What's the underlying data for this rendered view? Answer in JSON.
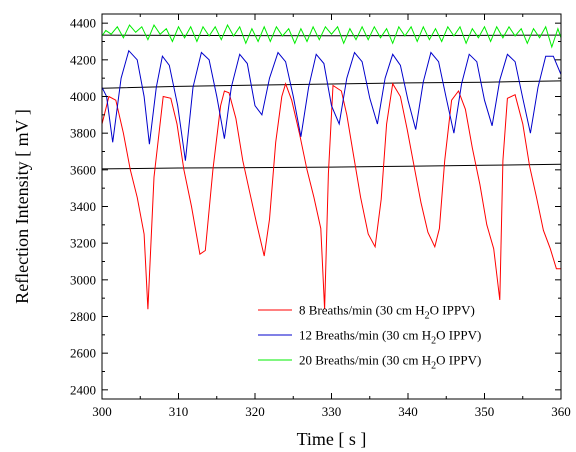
{
  "chart_data": {
    "type": "line",
    "title": "",
    "xlabel": "Time [ s ]",
    "ylabel": "Reflection Intensity [ mV ]",
    "xlim": [
      300,
      360
    ],
    "ylim": [
      2350,
      4450
    ],
    "x_ticks": [
      300,
      310,
      320,
      330,
      340,
      350,
      360
    ],
    "y_ticks": [
      2400,
      2600,
      2800,
      3000,
      3200,
      3400,
      3600,
      3800,
      4000,
      4200,
      4400
    ],
    "grid": false,
    "legend_position": "bottom-right",
    "series": [
      {
        "name": "8 Breaths/min (30 cm H2O IPPV)",
        "legend": {
          "pre": "8 Breaths/min (30 cm H",
          "sub": "2",
          "post": "O IPPV)"
        },
        "color": "#ff0000",
        "x": [
          300,
          300.9,
          301.8,
          302.8,
          303.7,
          304.6,
          305.5,
          306,
          306.8,
          308,
          309,
          309.8,
          310.7,
          311.7,
          312.8,
          313.5,
          314.5,
          315.5,
          316,
          316.6,
          317.5,
          318.4,
          319.3,
          320.2,
          321.2,
          321.9,
          322.7,
          323.5,
          324,
          324.8,
          325.8,
          326.8,
          327.7,
          328.6,
          329.1,
          329.6,
          330.2,
          331.3,
          332,
          332.8,
          333.8,
          334.8,
          335.7,
          336.5,
          337.2,
          338,
          339,
          339.9,
          340.8,
          341.7,
          342.6,
          343.5,
          344.1,
          344.8,
          345.7,
          346.6,
          347.5,
          348.4,
          349.4,
          350.3,
          351.2,
          352,
          352.4,
          353,
          354,
          355,
          355.9,
          356.8,
          357.7,
          358.6,
          359.4,
          360
        ],
        "values": [
          3850,
          4000,
          3980,
          3800,
          3600,
          3450,
          3250,
          2840,
          3560,
          4000,
          3990,
          3850,
          3600,
          3400,
          3140,
          3160,
          3600,
          3950,
          4030,
          4020,
          3880,
          3650,
          3480,
          3310,
          3130,
          3330,
          3750,
          4000,
          4070,
          3980,
          3800,
          3600,
          3450,
          3280,
          2840,
          3580,
          4060,
          4030,
          3900,
          3700,
          3450,
          3250,
          3180,
          3440,
          3850,
          4070,
          4000,
          3820,
          3620,
          3420,
          3260,
          3180,
          3280,
          3650,
          3980,
          4030,
          3930,
          3720,
          3520,
          3300,
          3170,
          2890,
          3650,
          3990,
          4010,
          3850,
          3620,
          3450,
          3270,
          3170,
          3060,
          3060
        ]
      },
      {
        "name": "12 Breaths/min (30 cm H2O IPPV)",
        "legend": {
          "pre": "12 Breaths/min (30 cm H",
          "sub": "2",
          "post": "O IPPV)"
        },
        "color": "#0000cc",
        "x": [
          300,
          300.6,
          301.4,
          302.5,
          303.5,
          304.6,
          305.5,
          306.2,
          307.1,
          307.9,
          308.8,
          309.9,
          310.9,
          311.9,
          313,
          314,
          315,
          316,
          316.9,
          318,
          319,
          320,
          320.9,
          321.9,
          323,
          324,
          325,
          326,
          327,
          328,
          329,
          330,
          331,
          332,
          333,
          334,
          335,
          336,
          337,
          338,
          339,
          340,
          341,
          342,
          343,
          344,
          345,
          346,
          347,
          348,
          349,
          350,
          351,
          352,
          353,
          354,
          355,
          356,
          357,
          358,
          359,
          360
        ],
        "values": [
          4050,
          4000,
          3750,
          4100,
          4250,
          4200,
          4000,
          3740,
          4050,
          4220,
          4170,
          3950,
          3650,
          4050,
          4240,
          4200,
          4000,
          3770,
          4050,
          4230,
          4180,
          3950,
          3900,
          4100,
          4240,
          4190,
          4000,
          3780,
          4050,
          4230,
          4180,
          3950,
          3850,
          4100,
          4240,
          4190,
          3990,
          3850,
          4100,
          4230,
          4170,
          3980,
          3820,
          4080,
          4240,
          4190,
          3990,
          3800,
          4070,
          4230,
          4190,
          3980,
          3840,
          4090,
          4230,
          4190,
          3990,
          3800,
          4050,
          4220,
          4220,
          4120
        ]
      },
      {
        "name": "20 Breaths/min (30 cm H2O IPPV)",
        "legend": {
          "pre": "20 Breaths/min (30 cm H",
          "sub": "2",
          "post": "O IPPV)"
        },
        "color": "#00ee00",
        "x": [
          300,
          300.5,
          301.2,
          302,
          302.8,
          303.6,
          304.4,
          305.2,
          306,
          306.8,
          307.6,
          308.4,
          309.2,
          310,
          310.8,
          311.6,
          312.4,
          313.2,
          314,
          314.8,
          315.6,
          316.4,
          317.2,
          318,
          318.8,
          319.6,
          320.4,
          321.2,
          322,
          322.8,
          323.6,
          324.4,
          325.2,
          326,
          326.8,
          327.6,
          328.4,
          329.2,
          330,
          330.8,
          331.6,
          332.4,
          333.2,
          334,
          334.8,
          335.6,
          336.4,
          337.2,
          338,
          338.8,
          339.6,
          340.4,
          341.2,
          342,
          342.8,
          343.6,
          344.4,
          345.2,
          346,
          346.8,
          347.6,
          348.4,
          349.2,
          350,
          350.8,
          351.6,
          352.4,
          353.2,
          354,
          354.8,
          355.6,
          356.4,
          357.2,
          358,
          358.8,
          359.6,
          360
        ],
        "values": [
          4330,
          4360,
          4340,
          4380,
          4320,
          4390,
          4350,
          4380,
          4310,
          4390,
          4340,
          4370,
          4300,
          4380,
          4320,
          4380,
          4300,
          4380,
          4330,
          4380,
          4310,
          4390,
          4330,
          4380,
          4290,
          4370,
          4300,
          4380,
          4300,
          4380,
          4330,
          4370,
          4290,
          4370,
          4300,
          4380,
          4310,
          4380,
          4340,
          4380,
          4290,
          4370,
          4310,
          4380,
          4310,
          4380,
          4320,
          4370,
          4290,
          4380,
          4330,
          4380,
          4300,
          4380,
          4310,
          4370,
          4300,
          4380,
          4330,
          4380,
          4290,
          4370,
          4320,
          4380,
          4300,
          4380,
          4320,
          4380,
          4330,
          4370,
          4290,
          4370,
          4320,
          4380,
          4270,
          4370,
          4320
        ]
      }
    ],
    "baselines": [
      {
        "color": "#000000",
        "x": [
          300,
          310,
          320,
          330,
          340,
          350,
          360
        ],
        "values": [
          4335,
          4333,
          4332,
          4331,
          4332,
          4333,
          4335
        ]
      },
      {
        "color": "#000000",
        "x": [
          300,
          310,
          320,
          330,
          340,
          350,
          360
        ],
        "values": [
          4045,
          4055,
          4062,
          4068,
          4074,
          4078,
          4085
        ]
      },
      {
        "color": "#000000",
        "x": [
          300,
          310,
          320,
          330,
          340,
          350,
          360
        ],
        "values": [
          3605,
          3610,
          3612,
          3615,
          3620,
          3625,
          3630
        ]
      }
    ]
  }
}
